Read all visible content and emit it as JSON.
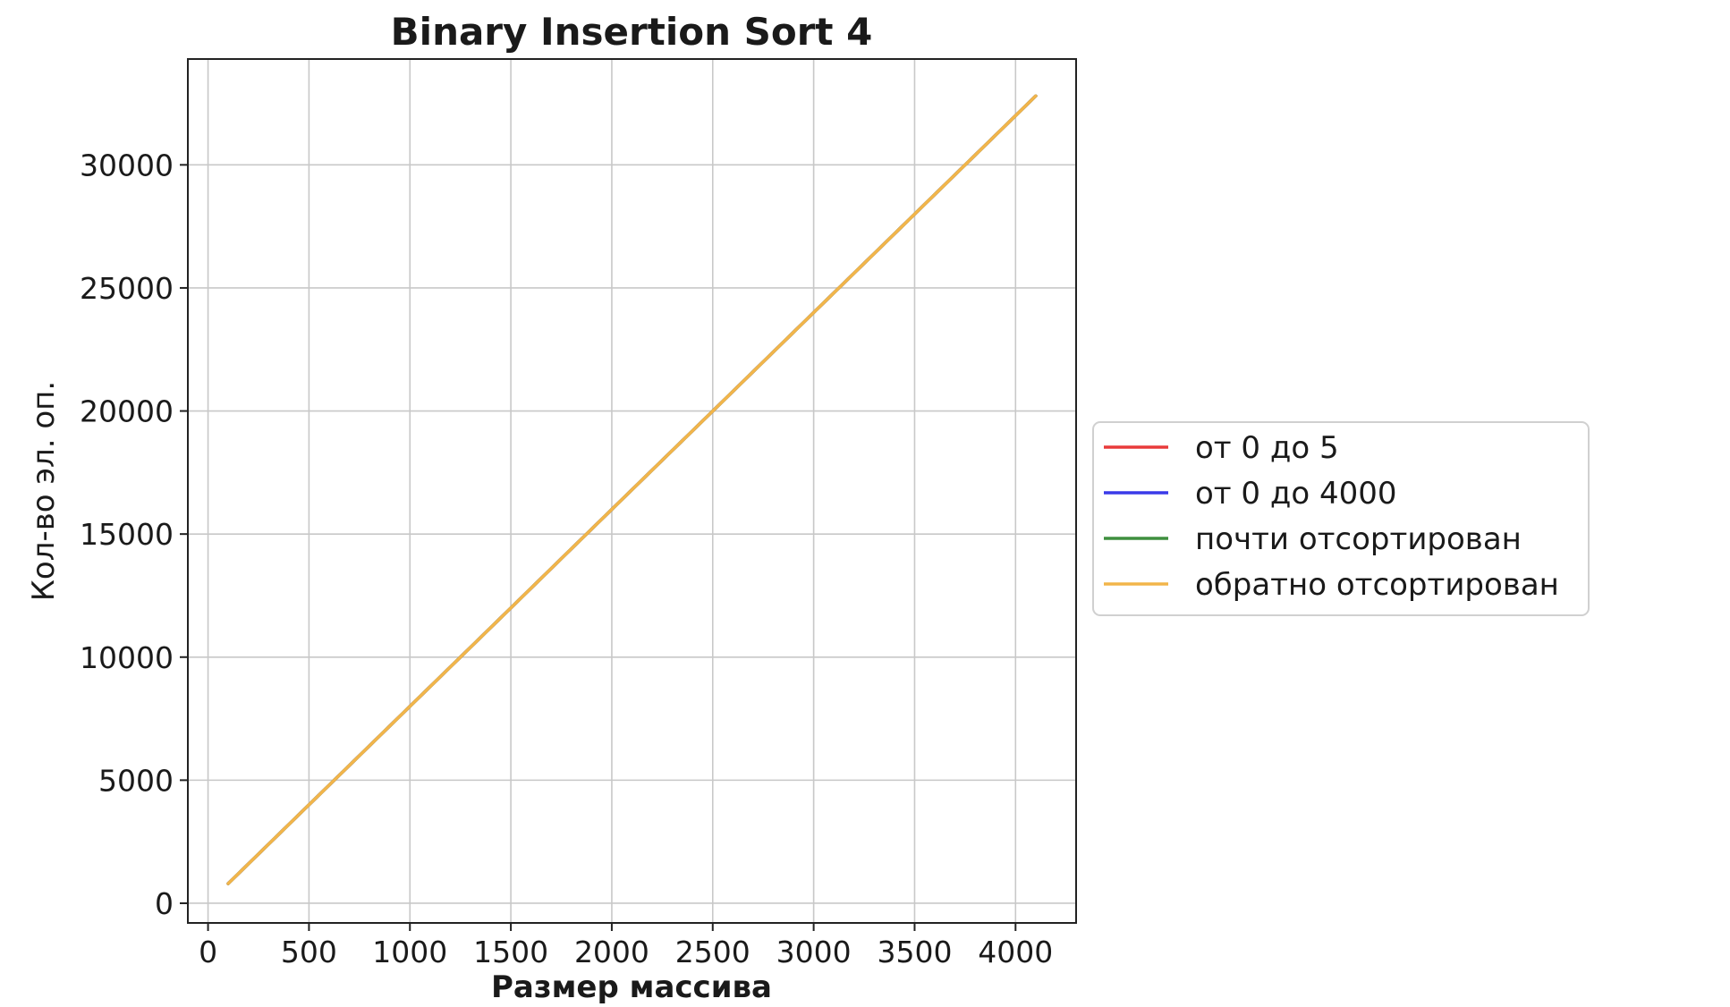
{
  "chart_data": {
    "type": "line",
    "title": "Binary Insertion Sort 4",
    "xlabel": "Размер массива",
    "ylabel": "Кол-во эл. оп.",
    "xlim": [
      -100,
      4300
    ],
    "ylim": [
      -800,
      34300
    ],
    "xticks": [
      0,
      500,
      1000,
      1500,
      2000,
      2500,
      3000,
      3500,
      4000
    ],
    "yticks": [
      0,
      5000,
      10000,
      15000,
      20000,
      25000,
      30000
    ],
    "grid": true,
    "legend_position": "center-right, outside axes",
    "series": [
      {
        "name": "от 0 до 5",
        "color": "#e83a3a",
        "x": [
          100,
          500,
          1000,
          1500,
          2000,
          2500,
          3000,
          3500,
          4100
        ],
        "y": [
          800,
          4000,
          8000,
          12000,
          16000,
          20000,
          24000,
          28000,
          32800
        ]
      },
      {
        "name": "от 0 до 4000",
        "color": "#3a3ae8",
        "x": [
          100,
          500,
          1000,
          1500,
          2000,
          2500,
          3000,
          3500,
          4100
        ],
        "y": [
          800,
          4000,
          8000,
          12000,
          16000,
          20000,
          24000,
          28000,
          32800
        ]
      },
      {
        "name": "почти отсортирован",
        "color": "#3f8f3f",
        "x": [
          100,
          500,
          1000,
          1500,
          2000,
          2500,
          3000,
          3500,
          4100
        ],
        "y": [
          800,
          4000,
          8000,
          12000,
          16000,
          20000,
          24000,
          28000,
          32800
        ]
      },
      {
        "name": "обратно отсортирован",
        "color": "#f2b54a",
        "x": [
          100,
          500,
          1000,
          1500,
          2000,
          2500,
          3000,
          3500,
          4100
        ],
        "y": [
          800,
          4000,
          8000,
          12000,
          16000,
          20000,
          24000,
          28000,
          32800
        ]
      }
    ]
  }
}
